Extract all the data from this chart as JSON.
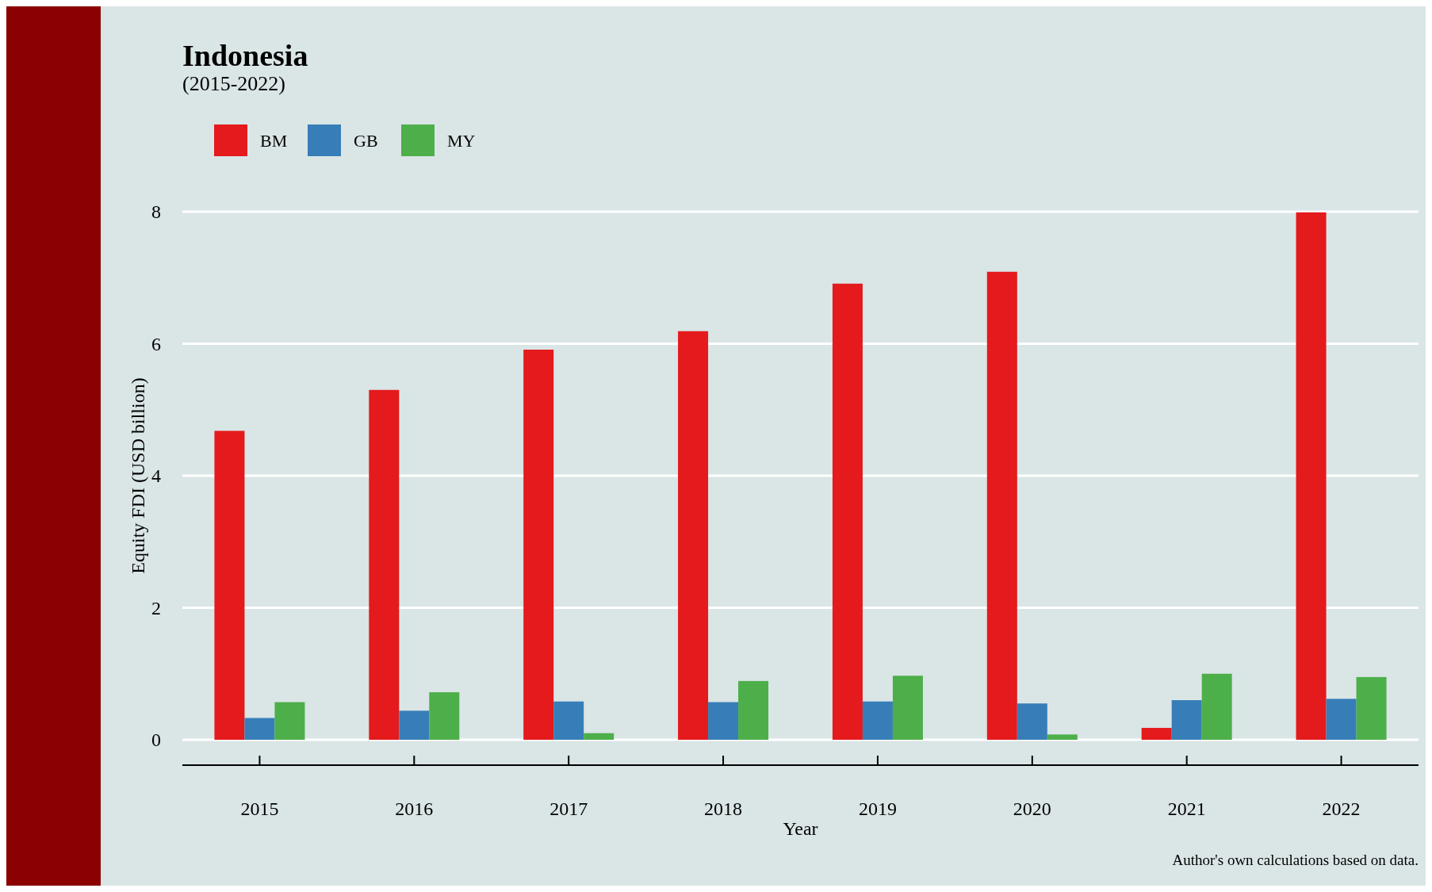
{
  "chart_data": {
    "type": "bar",
    "title": "Indonesia",
    "subtitle": "(2015-2022)",
    "xlabel": "Year",
    "ylabel": "Equity FDI (USD billion)",
    "categories": [
      "2015",
      "2016",
      "2017",
      "2018",
      "2019",
      "2020",
      "2021",
      "2022"
    ],
    "series": [
      {
        "name": "BM",
        "color": "#e41a1c",
        "values": [
          4.68,
          5.3,
          5.91,
          6.19,
          6.91,
          7.09,
          0.18,
          7.99
        ]
      },
      {
        "name": "GB",
        "color": "#377eb8",
        "values": [
          0.33,
          0.44,
          0.58,
          0.57,
          0.58,
          0.55,
          0.6,
          0.62
        ]
      },
      {
        "name": "MY",
        "color": "#4daf4a",
        "values": [
          0.57,
          0.72,
          0.1,
          0.89,
          0.97,
          0.08,
          1.0,
          0.95
        ]
      }
    ],
    "ylim": [
      0,
      8
    ],
    "yticks": [
      0,
      2,
      4,
      6,
      8
    ],
    "grid": "y",
    "legend": "top left",
    "annotations": [
      "Author's own calculations based on data."
    ]
  }
}
